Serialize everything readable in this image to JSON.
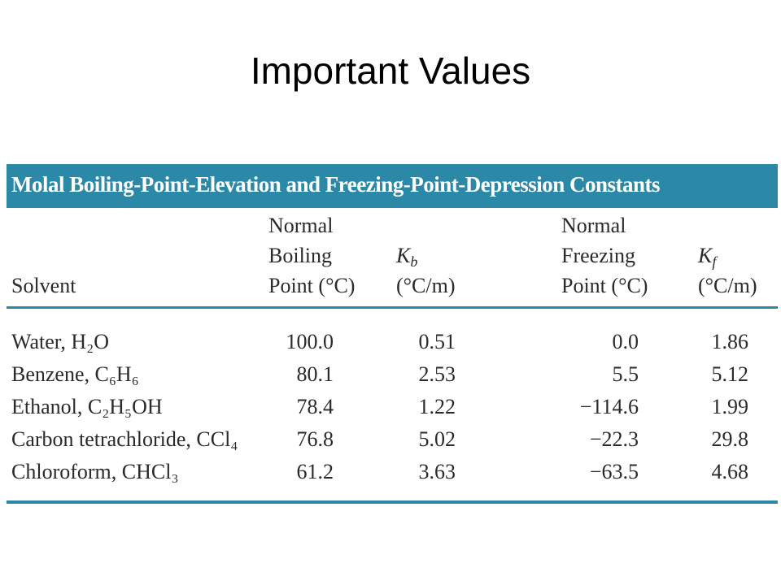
{
  "title": "Important Values",
  "table": {
    "caption": "Molal Boiling-Point-Elevation and Freezing-Point-Depression Constants",
    "headers": [
      {
        "lines": [
          "Solvent"
        ]
      },
      {
        "lines": [
          "Normal",
          "Boiling",
          "Point (°C)"
        ]
      },
      {
        "symbol": "K",
        "sub": "b",
        "unit": "(°C/m)"
      },
      {
        "lines": [
          "Normal",
          "Freezing",
          "Point (°C)"
        ]
      },
      {
        "symbol": "K",
        "sub": "f",
        "unit": "(°C/m)"
      }
    ],
    "rows": [
      [
        "Water, H₂O",
        "100.0",
        "0.51",
        "0.0",
        "1.86"
      ],
      [
        "Benzene, C₆H₆",
        "80.1",
        "2.53",
        "5.5",
        "5.12"
      ],
      [
        "Ethanol, C₂H₅OH",
        "78.4",
        "1.22",
        "−114.6",
        "1.99"
      ],
      [
        "Carbon tetrachloride, CCl₄",
        "76.8",
        "5.02",
        "−22.3",
        "29.8"
      ],
      [
        "Chloroform, CHCl₃",
        "61.2",
        "3.63",
        "−63.5",
        "4.68"
      ]
    ]
  }
}
